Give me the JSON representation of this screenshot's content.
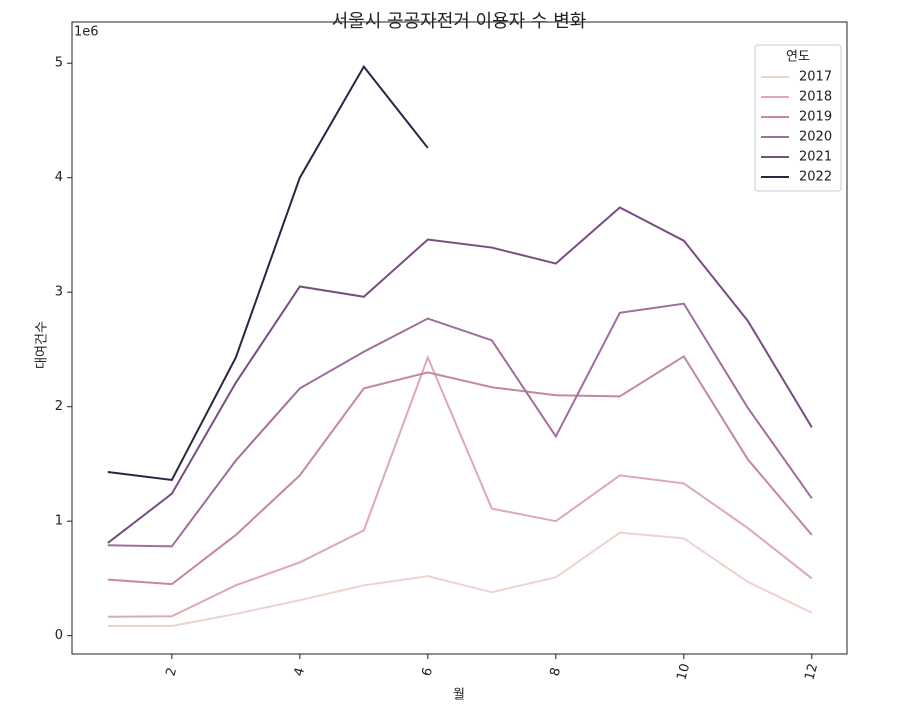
{
  "chart_data": {
    "type": "line",
    "title": "서울시 공공자전거 이용자 수 변화",
    "x_label": "월",
    "y_label": "대여건수",
    "y_offset_label": "1e6",
    "x": [
      1,
      2,
      3,
      4,
      5,
      6,
      7,
      8,
      9,
      10,
      11,
      12
    ],
    "xlim": [
      0.44,
      12.55
    ],
    "xticks": [
      2,
      4,
      6,
      8,
      10,
      12
    ],
    "ylim": [
      -0.16,
      5.36
    ],
    "yticks": [
      0,
      1,
      2,
      3,
      4,
      5
    ],
    "grid": false,
    "legend_title": "연도",
    "legend_position": "upper right",
    "series": [
      {
        "name": "2017",
        "color": "#eed3cd",
        "values": [
          0.085,
          0.085,
          0.19,
          0.31,
          0.44,
          0.52,
          0.38,
          0.51,
          0.9,
          0.85,
          0.47,
          0.2
        ]
      },
      {
        "name": "2018",
        "color": "#dcaab0",
        "values": [
          0.165,
          0.17,
          0.44,
          0.64,
          0.92,
          2.43,
          1.11,
          1.0,
          1.4,
          1.33,
          0.94,
          0.5
        ]
      },
      {
        "name": "2019",
        "color": "#c5879c",
        "values": [
          0.49,
          0.45,
          0.88,
          1.4,
          2.16,
          2.3,
          2.17,
          2.1,
          2.09,
          2.44,
          1.54,
          0.88
        ]
      },
      {
        "name": "2020",
        "color": "#a16e99",
        "values": [
          0.79,
          0.78,
          1.53,
          2.16,
          2.48,
          2.77,
          2.58,
          1.74,
          2.82,
          2.9,
          1.99,
          1.2
        ]
      },
      {
        "name": "2021",
        "color": "#774e80",
        "values": [
          0.81,
          1.24,
          2.21,
          3.05,
          2.96,
          3.46,
          3.39,
          3.25,
          3.74,
          3.45,
          2.75,
          1.82
        ]
      },
      {
        "name": "2022",
        "color": "#2c2446",
        "values": [
          1.43,
          1.36,
          2.43,
          4.0,
          4.97,
          4.26,
          null,
          null,
          null,
          null,
          null,
          null
        ]
      }
    ]
  }
}
